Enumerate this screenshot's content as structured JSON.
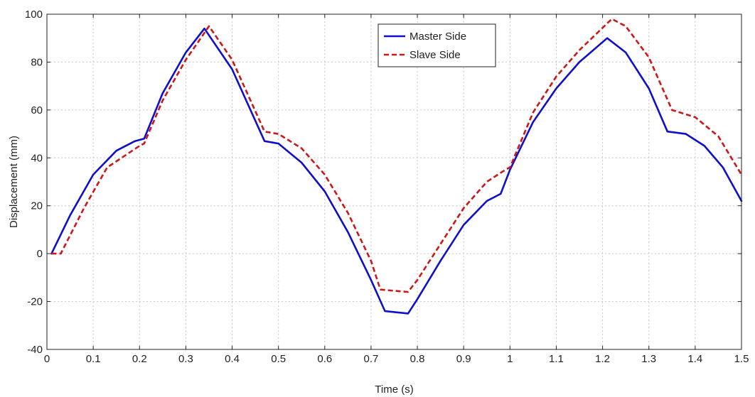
{
  "chart_data": {
    "type": "line",
    "title": "",
    "xlabel": "Time (s)",
    "ylabel": "Displacement (mm)",
    "xlim": [
      0,
      1.5
    ],
    "ylim": [
      -40,
      100
    ],
    "xticks": [
      0,
      0.1,
      0.2,
      0.3,
      0.4,
      0.5,
      0.6,
      0.7,
      0.8,
      0.9,
      1,
      1.1,
      1.2,
      1.3,
      1.4,
      1.5
    ],
    "xtick_labels": [
      "0",
      "0.1",
      "0.2",
      "0.3",
      "0.4",
      "0.5",
      "0.6",
      "0.7",
      "0.8",
      "0.9",
      "1",
      "1.1",
      "1.2",
      "1.3",
      "1.4",
      "1.5"
    ],
    "yticks": [
      -40,
      -20,
      0,
      20,
      40,
      60,
      80,
      100
    ],
    "ytick_labels": [
      "-40",
      "-20",
      "0",
      "20",
      "40",
      "60",
      "80",
      "100"
    ],
    "grid": true,
    "legend_position": "top-center",
    "series": [
      {
        "name": "Master Side",
        "color": "#1010c8",
        "dash": "solid",
        "x": [
          0.01,
          0.05,
          0.1,
          0.15,
          0.19,
          0.21,
          0.25,
          0.3,
          0.34,
          0.4,
          0.47,
          0.5,
          0.55,
          0.6,
          0.65,
          0.7,
          0.73,
          0.78,
          0.8,
          0.85,
          0.9,
          0.95,
          0.98,
          1.0,
          1.05,
          1.1,
          1.15,
          1.21,
          1.25,
          1.3,
          1.34,
          1.38,
          1.42,
          1.46,
          1.5
        ],
        "y": [
          0,
          16,
          33,
          43,
          47,
          48,
          67,
          84,
          94,
          77,
          47,
          46,
          38,
          26,
          9,
          -11,
          -24,
          -25,
          -19,
          -3,
          12,
          22,
          25,
          35,
          55,
          69,
          80,
          90,
          84,
          69,
          51,
          50,
          45,
          36,
          22
        ]
      },
      {
        "name": "Slave Side",
        "color": "#cc1818",
        "dash": "dashed",
        "x": [
          0.01,
          0.03,
          0.08,
          0.13,
          0.2,
          0.21,
          0.25,
          0.3,
          0.35,
          0.4,
          0.47,
          0.5,
          0.55,
          0.6,
          0.65,
          0.7,
          0.72,
          0.78,
          0.8,
          0.85,
          0.9,
          0.95,
          0.99,
          1.0,
          1.05,
          1.1,
          1.15,
          1.22,
          1.25,
          1.3,
          1.35,
          1.4,
          1.45,
          1.5
        ],
        "y": [
          0,
          0,
          19,
          36,
          45,
          46,
          64,
          81,
          95,
          81,
          51,
          50,
          44,
          33,
          17,
          -3,
          -15,
          -16,
          -11,
          4,
          19,
          30,
          35,
          36,
          59,
          74,
          85,
          98,
          95,
          82,
          60,
          57,
          49,
          33
        ]
      }
    ]
  }
}
